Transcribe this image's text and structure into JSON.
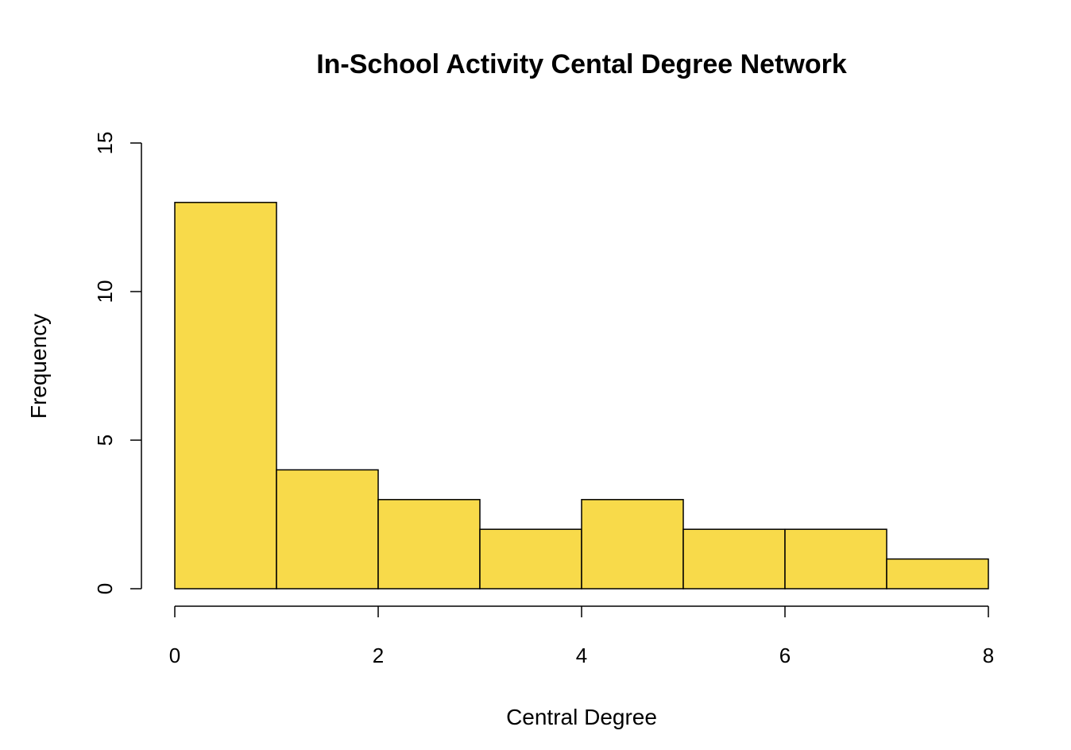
{
  "chart_data": {
    "type": "histogram",
    "title": "In-School Activity Cental Degree Network",
    "xlabel": "Central Degree",
    "ylabel": "Frequency",
    "bins": [
      0,
      1,
      2,
      3,
      4,
      5,
      6,
      7,
      8
    ],
    "values": [
      13,
      4,
      3,
      2,
      3,
      2,
      2,
      1
    ],
    "color": "#f8da4a",
    "xlim": [
      0,
      8
    ],
    "xticks": [
      0,
      2,
      4,
      6,
      8
    ],
    "ylim": [
      0,
      15
    ],
    "yticks": [
      0,
      5,
      10,
      15
    ]
  }
}
